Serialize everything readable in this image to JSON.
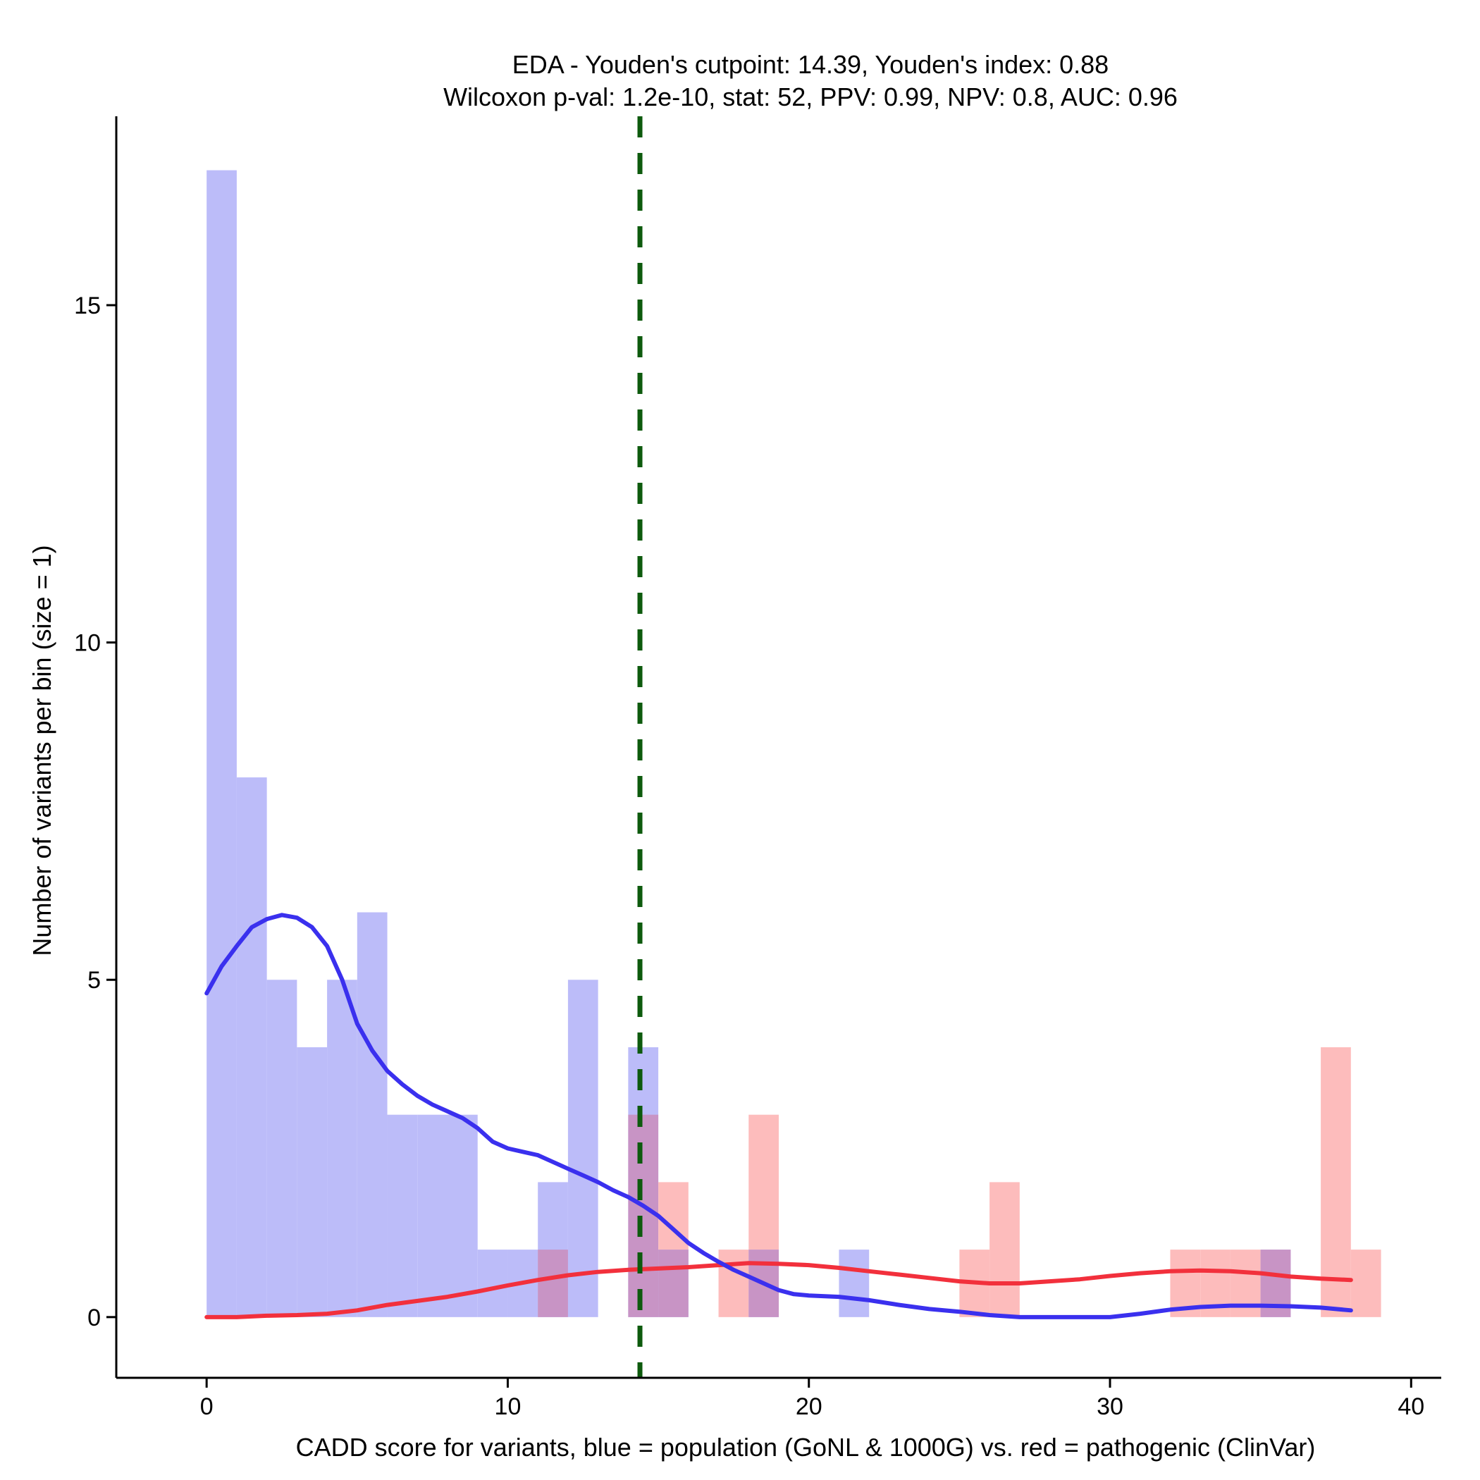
{
  "chart_data": {
    "type": "histogram",
    "title_line1": "EDA - Youden's cutpoint: 14.39, Youden's index: 0.88",
    "title_line2": "Wilcoxon p-val: 1.2e-10, stat: 52, PPV: 0.99, NPV: 0.8, AUC: 0.96",
    "xlabel": "CADD score for variants, blue = population (GoNL & 1000G) vs. red = pathogenic (ClinVar)",
    "ylabel": "Number of variants per bin (size = 1)",
    "xlim": [
      -3,
      41
    ],
    "ylim": [
      -0.9,
      17.8
    ],
    "x_ticks": [
      0,
      10,
      20,
      30,
      40
    ],
    "x_tick_labels": [
      "0",
      "10",
      "20",
      "30",
      "40"
    ],
    "y_ticks": [
      0,
      5,
      10,
      15
    ],
    "y_tick_labels": [
      "0",
      "5",
      "10",
      "15"
    ],
    "bin_width": 1,
    "cutpoint": 14.39,
    "colors": {
      "population_bar": "#bcbcf9",
      "pathogenic_bar": "#fdbcbc",
      "overlap_bar": "#c894c5",
      "population_line": "#3a30ee",
      "pathogenic_line": "#f2303c",
      "cutpoint_line": "#0d5a0d"
    },
    "series": [
      {
        "name": "population (GoNL & 1000G)",
        "bins": [
          {
            "x": 0,
            "count": 17
          },
          {
            "x": 1,
            "count": 8
          },
          {
            "x": 2,
            "count": 5
          },
          {
            "x": 3,
            "count": 4
          },
          {
            "x": 4,
            "count": 5
          },
          {
            "x": 5,
            "count": 6
          },
          {
            "x": 6,
            "count": 3
          },
          {
            "x": 7,
            "count": 3
          },
          {
            "x": 8,
            "count": 3
          },
          {
            "x": 9,
            "count": 1
          },
          {
            "x": 10,
            "count": 1
          },
          {
            "x": 11,
            "count": 2
          },
          {
            "x": 12,
            "count": 5
          },
          {
            "x": 14,
            "count": 4
          },
          {
            "x": 15,
            "count": 1
          },
          {
            "x": 18,
            "count": 1
          },
          {
            "x": 21,
            "count": 1
          },
          {
            "x": 35,
            "count": 1
          }
        ],
        "density_curve": [
          [
            0,
            4.8
          ],
          [
            0.5,
            5.2
          ],
          [
            1,
            5.5
          ],
          [
            1.5,
            5.78
          ],
          [
            2,
            5.9
          ],
          [
            2.5,
            5.96
          ],
          [
            3,
            5.92
          ],
          [
            3.5,
            5.78
          ],
          [
            4,
            5.5
          ],
          [
            4.5,
            5.0
          ],
          [
            5,
            4.35
          ],
          [
            5.5,
            3.95
          ],
          [
            6,
            3.65
          ],
          [
            6.5,
            3.45
          ],
          [
            7,
            3.28
          ],
          [
            7.5,
            3.15
          ],
          [
            8,
            3.05
          ],
          [
            8.5,
            2.95
          ],
          [
            9,
            2.8
          ],
          [
            9.5,
            2.6
          ],
          [
            10,
            2.5
          ],
          [
            10.5,
            2.45
          ],
          [
            11,
            2.4
          ],
          [
            11.5,
            2.3
          ],
          [
            12,
            2.2
          ],
          [
            12.5,
            2.1
          ],
          [
            13,
            2.0
          ],
          [
            13.5,
            1.88
          ],
          [
            14,
            1.78
          ],
          [
            14.5,
            1.65
          ],
          [
            15,
            1.5
          ],
          [
            15.5,
            1.3
          ],
          [
            16,
            1.1
          ],
          [
            16.5,
            0.95
          ],
          [
            17,
            0.82
          ],
          [
            17.5,
            0.7
          ],
          [
            18,
            0.6
          ],
          [
            18.5,
            0.5
          ],
          [
            19,
            0.4
          ],
          [
            19.5,
            0.34
          ],
          [
            20,
            0.32
          ],
          [
            21,
            0.3
          ],
          [
            22,
            0.25
          ],
          [
            23,
            0.18
          ],
          [
            24,
            0.12
          ],
          [
            25,
            0.08
          ],
          [
            26,
            0.03
          ],
          [
            27,
            0.0
          ],
          [
            28,
            0.0
          ],
          [
            29,
            0.0
          ],
          [
            30,
            0.0
          ],
          [
            31,
            0.05
          ],
          [
            32,
            0.11
          ],
          [
            33,
            0.15
          ],
          [
            34,
            0.17
          ],
          [
            35,
            0.17
          ],
          [
            36,
            0.16
          ],
          [
            37,
            0.14
          ],
          [
            38,
            0.1
          ]
        ]
      },
      {
        "name": "pathogenic (ClinVar)",
        "bins": [
          {
            "x": 11,
            "count": 1
          },
          {
            "x": 14,
            "count": 3
          },
          {
            "x": 15,
            "count": 2
          },
          {
            "x": 17,
            "count": 1
          },
          {
            "x": 18,
            "count": 3
          },
          {
            "x": 25,
            "count": 1
          },
          {
            "x": 26,
            "count": 2
          },
          {
            "x": 32,
            "count": 1
          },
          {
            "x": 33,
            "count": 1
          },
          {
            "x": 34,
            "count": 1
          },
          {
            "x": 35,
            "count": 1
          },
          {
            "x": 37,
            "count": 4
          },
          {
            "x": 38,
            "count": 1
          }
        ],
        "density_curve": [
          [
            0,
            0.0
          ],
          [
            1,
            0.0
          ],
          [
            2,
            0.02
          ],
          [
            3,
            0.03
          ],
          [
            4,
            0.05
          ],
          [
            5,
            0.1
          ],
          [
            6,
            0.18
          ],
          [
            7,
            0.24
          ],
          [
            8,
            0.3
          ],
          [
            9,
            0.38
          ],
          [
            10,
            0.47
          ],
          [
            11,
            0.55
          ],
          [
            12,
            0.62
          ],
          [
            13,
            0.67
          ],
          [
            14,
            0.7
          ],
          [
            15,
            0.72
          ],
          [
            16,
            0.74
          ],
          [
            17,
            0.77
          ],
          [
            18,
            0.8
          ],
          [
            19,
            0.79
          ],
          [
            20,
            0.77
          ],
          [
            21,
            0.73
          ],
          [
            22,
            0.68
          ],
          [
            23,
            0.63
          ],
          [
            24,
            0.58
          ],
          [
            25,
            0.53
          ],
          [
            26,
            0.5
          ],
          [
            27,
            0.5
          ],
          [
            28,
            0.53
          ],
          [
            29,
            0.56
          ],
          [
            30,
            0.61
          ],
          [
            31,
            0.65
          ],
          [
            32,
            0.68
          ],
          [
            33,
            0.69
          ],
          [
            34,
            0.68
          ],
          [
            35,
            0.65
          ],
          [
            36,
            0.6
          ],
          [
            37,
            0.57
          ],
          [
            38,
            0.55
          ]
        ]
      }
    ]
  }
}
